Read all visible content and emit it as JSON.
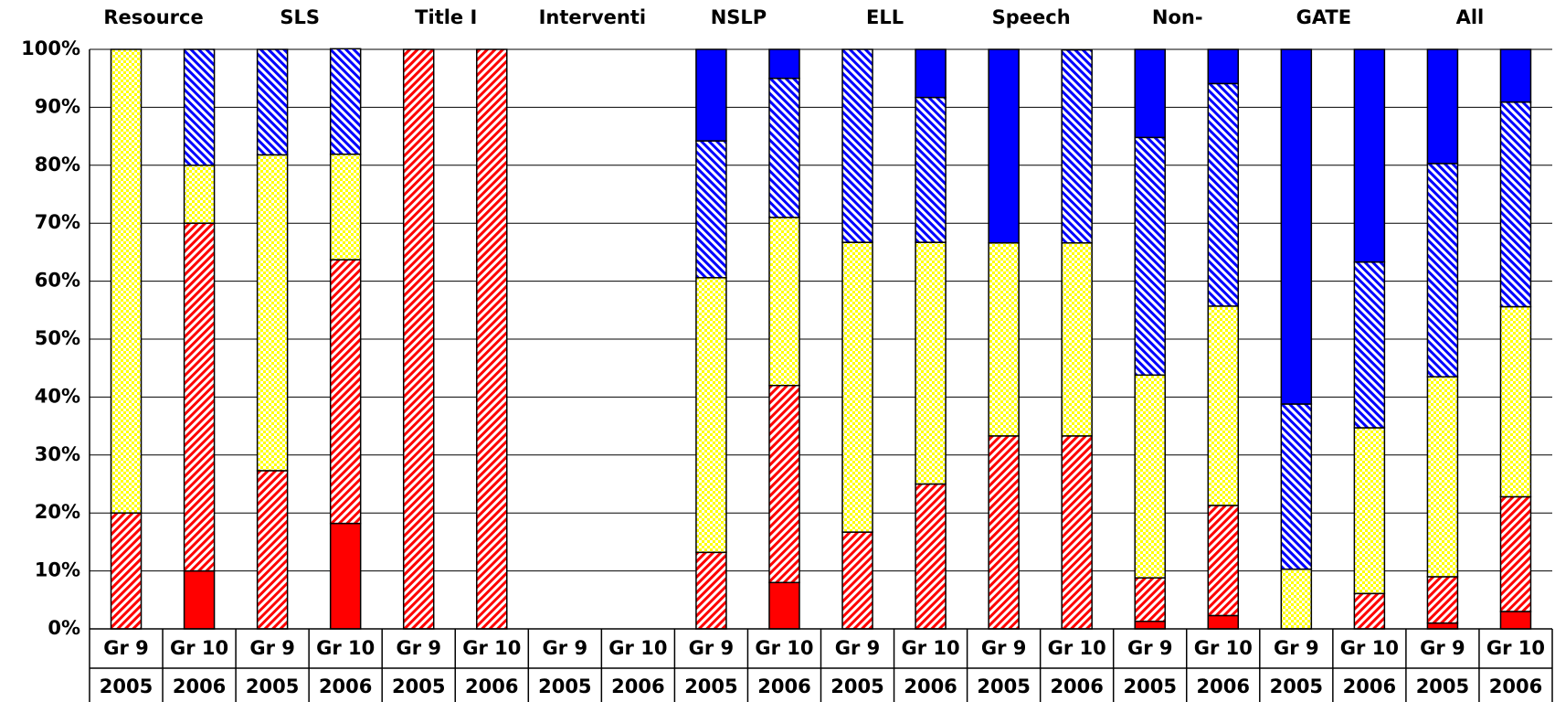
{
  "chart_data": {
    "type": "stacked_bar",
    "groups": [
      "Resource",
      "SLS",
      "Title I",
      "Interventi",
      "NSLP",
      "ELL",
      "Speech",
      "Non-",
      "GATE",
      "All"
    ],
    "categories": [
      [
        "Gr 9",
        "2005"
      ],
      [
        "Gr 10",
        "2006"
      ],
      [
        "Gr 9",
        "2005"
      ],
      [
        "Gr 10",
        "2006"
      ],
      [
        "Gr 9",
        "2005"
      ],
      [
        "Gr 10",
        "2006"
      ],
      [
        "Gr 9",
        "2005"
      ],
      [
        "Gr 10",
        "2006"
      ],
      [
        "Gr 9",
        "2005"
      ],
      [
        "Gr 10",
        "2006"
      ],
      [
        "Gr 9",
        "2005"
      ],
      [
        "Gr 10",
        "2006"
      ],
      [
        "Gr 9",
        "2005"
      ],
      [
        "Gr 10",
        "2006"
      ],
      [
        "Gr 9",
        "2005"
      ],
      [
        "Gr 10",
        "2006"
      ],
      [
        "Gr 9",
        "2005"
      ],
      [
        "Gr 10",
        "2006"
      ],
      [
        "Gr 9",
        "2005"
      ],
      [
        "Gr 10",
        "2006"
      ]
    ],
    "series": [
      {
        "color": "#ff0000",
        "pattern": "solid",
        "values": [
          0,
          10,
          0,
          18.2,
          0,
          0,
          0,
          0,
          0,
          8,
          0,
          0,
          0,
          0,
          1.3,
          2.3,
          0,
          0,
          1,
          3
        ]
      },
      {
        "color": "#ff0000",
        "pattern": "hatch-up",
        "values": [
          20,
          60,
          27.3,
          45.5,
          100,
          100,
          0,
          0,
          13.2,
          34,
          16.7,
          25,
          33.3,
          33.3,
          7.5,
          19,
          0,
          6.1,
          8,
          19.8
        ]
      },
      {
        "color": "#ffff00",
        "pattern": "checker",
        "values": [
          80,
          10,
          54.5,
          18.2,
          0,
          0,
          0,
          0,
          47.4,
          29,
          50,
          41.7,
          33.3,
          33.3,
          35,
          34.4,
          10.3,
          28.6,
          34.5,
          32.8
        ]
      },
      {
        "color": "#0000ff",
        "pattern": "hatch-down",
        "values": [
          0,
          20,
          18.2,
          18.2,
          0,
          0,
          0,
          0,
          23.6,
          24,
          33.3,
          25,
          0,
          33.3,
          41,
          38.4,
          28.5,
          28.6,
          36.8,
          35.3
        ]
      },
      {
        "color": "#0000ff",
        "pattern": "solid",
        "values": [
          0,
          0,
          0,
          0,
          0,
          0,
          0,
          0,
          15.8,
          5,
          0,
          8.3,
          33.4,
          0,
          15.2,
          5.9,
          61.2,
          36.7,
          19.7,
          9.1
        ]
      }
    ],
    "ylim": [
      0,
      100
    ],
    "yticks": [
      {
        "value": 0,
        "label": "0%"
      },
      {
        "value": 10,
        "label": "10%"
      },
      {
        "value": 20,
        "label": "20%"
      },
      {
        "value": 30,
        "label": "30%"
      },
      {
        "value": 40,
        "label": "40%"
      },
      {
        "value": 50,
        "label": "50%"
      },
      {
        "value": 60,
        "label": "60%"
      },
      {
        "value": 70,
        "label": "70%"
      },
      {
        "value": 80,
        "label": "80%"
      },
      {
        "value": 90,
        "label": "90%"
      },
      {
        "value": 100,
        "label": "100%"
      }
    ],
    "grid": true
  }
}
